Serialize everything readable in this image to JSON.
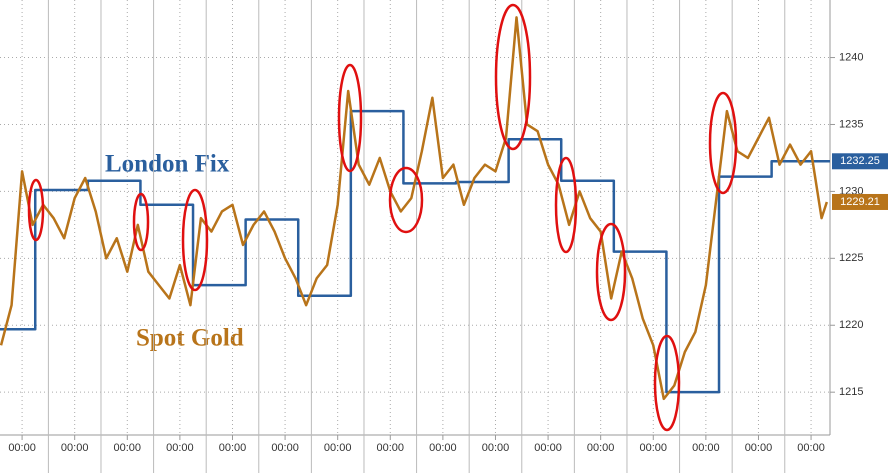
{
  "chart_data": {
    "type": "line",
    "annotations": [
      "London Fix",
      "Spot Gold"
    ],
    "xlim": [
      -0.42,
      15.36
    ],
    "xticks": [
      {
        "value": 0,
        "label": "00:00"
      },
      {
        "value": 1,
        "label": "00:00"
      },
      {
        "value": 2,
        "label": "00:00"
      },
      {
        "value": 3,
        "label": "00:00"
      },
      {
        "value": 4,
        "label": "00:00"
      },
      {
        "value": 5,
        "label": "00:00"
      },
      {
        "value": 6,
        "label": "00:00"
      },
      {
        "value": 7,
        "label": "00:00"
      },
      {
        "value": 8,
        "label": "00:00"
      },
      {
        "value": 9,
        "label": "00:00"
      },
      {
        "value": 10,
        "label": "00:00"
      },
      {
        "value": 11,
        "label": "00:00"
      },
      {
        "value": 12,
        "label": "00:00"
      },
      {
        "value": 13,
        "label": "00:00"
      },
      {
        "value": 14,
        "label": "00:00"
      },
      {
        "value": 15,
        "label": "00:00"
      }
    ],
    "ylim": [
      1211.8,
      1244.3
    ],
    "yticks": [
      1215,
      1220,
      1225,
      1230,
      1235,
      1240
    ],
    "grid": true,
    "series": [
      {
        "name": "London Fix",
        "color": "#2a5f9e",
        "step": "post",
        "x": [
          -0.42,
          0.25,
          1.25,
          2.25,
          3.25,
          4.25,
          5.25,
          6.25,
          7.25,
          8.25,
          9.25,
          10.25,
          11.25,
          12.25,
          13.25,
          14.25
        ],
        "values": [
          1219.7,
          1230.1,
          1230.8,
          1229.0,
          1223.0,
          1227.9,
          1222.2,
          1236.0,
          1230.6,
          1230.7,
          1233.9,
          1230.8,
          1225.5,
          1215.0,
          1231.1,
          1232.25
        ]
      },
      {
        "name": "Spot Gold",
        "color": "#b8741a",
        "x": [
          -0.4,
          -0.2,
          0.0,
          0.2,
          0.4,
          0.6,
          0.8,
          1.0,
          1.2,
          1.4,
          1.6,
          1.8,
          2.0,
          2.2,
          2.4,
          2.6,
          2.8,
          3.0,
          3.2,
          3.4,
          3.6,
          3.8,
          4.0,
          4.2,
          4.4,
          4.6,
          4.8,
          5.0,
          5.2,
          5.4,
          5.6,
          5.8,
          6.0,
          6.2,
          6.4,
          6.6,
          6.8,
          7.0,
          7.2,
          7.4,
          7.6,
          7.8,
          8.0,
          8.2,
          8.4,
          8.6,
          8.8,
          9.0,
          9.2,
          9.4,
          9.6,
          9.8,
          10.0,
          10.2,
          10.4,
          10.6,
          10.8,
          11.0,
          11.2,
          11.4,
          11.6,
          11.8,
          12.0,
          12.2,
          12.4,
          12.6,
          12.8,
          13.0,
          13.2,
          13.4,
          13.6,
          13.8,
          14.0,
          14.2,
          14.4,
          14.6,
          14.8,
          15.0,
          15.2,
          15.3
        ],
        "values": [
          1218.5,
          1221.5,
          1231.5,
          1227.5,
          1229.0,
          1228.0,
          1226.5,
          1229.5,
          1231.0,
          1228.5,
          1225.0,
          1226.5,
          1224.0,
          1227.5,
          1224.0,
          1223.0,
          1222.0,
          1224.5,
          1221.5,
          1228.0,
          1227.0,
          1228.5,
          1229.0,
          1226.0,
          1227.5,
          1228.5,
          1227.0,
          1225.0,
          1223.5,
          1221.5,
          1223.5,
          1224.5,
          1229.0,
          1237.5,
          1232.0,
          1230.5,
          1232.5,
          1230.0,
          1228.5,
          1229.5,
          1233.0,
          1237.0,
          1231.0,
          1232.0,
          1229.0,
          1231.0,
          1232.0,
          1231.5,
          1234.0,
          1243.0,
          1235.0,
          1234.5,
          1232.0,
          1230.5,
          1227.5,
          1230.0,
          1228.0,
          1227.0,
          1222.0,
          1225.5,
          1223.5,
          1220.5,
          1218.5,
          1214.5,
          1215.5,
          1218.0,
          1219.5,
          1223.0,
          1229.5,
          1236.0,
          1233.0,
          1232.5,
          1234.0,
          1235.5,
          1232.0,
          1233.5,
          1232.0,
          1233.0,
          1228.0,
          1229.21
        ]
      }
    ]
  }
}
